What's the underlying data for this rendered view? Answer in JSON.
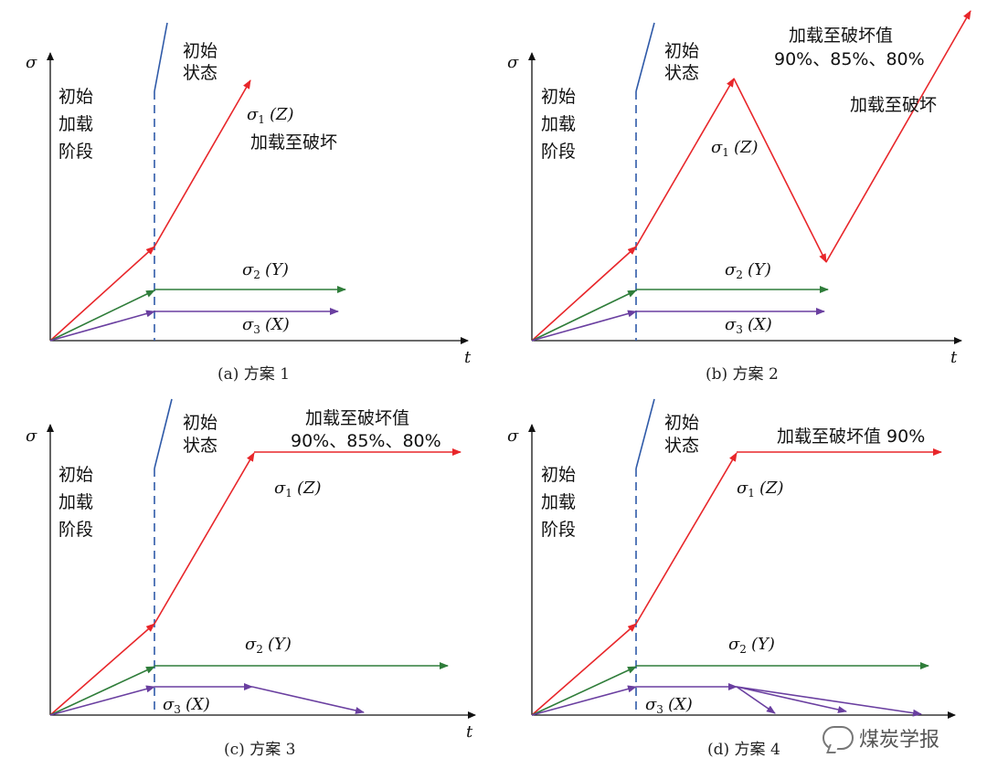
{
  "panels": [
    {
      "caption": "(a) 方案 1",
      "axis_y": "σ",
      "axis_x": "t",
      "initial_state": [
        "初始",
        "状态"
      ],
      "loading_stage": [
        "初始",
        "加载",
        "阶段"
      ],
      "s1_label": "σ",
      "s1_sub": "1",
      "s1_axis": "(Z)",
      "s2_label": "σ",
      "s2_sub": "2",
      "s2_axis": "(Y)",
      "s3_label": "σ",
      "s3_sub": "3",
      "s3_axis": "(X)",
      "note_lines": [
        "加载至破坏"
      ]
    },
    {
      "caption": "(b) 方案 2",
      "axis_y": "σ",
      "axis_x": "t",
      "initial_state": [
        "初始",
        "状态"
      ],
      "loading_stage": [
        "初始",
        "加载",
        "阶段"
      ],
      "s1_label": "σ",
      "s1_sub": "1",
      "s1_axis": "(Z)",
      "s2_label": "σ",
      "s2_sub": "2",
      "s2_axis": "(Y)",
      "s3_label": "σ",
      "s3_sub": "3",
      "s3_axis": "(X)",
      "note_lines": [
        "加载至破坏值",
        "90%、85%、80%"
      ],
      "note2_lines": [
        "加载至破坏"
      ]
    },
    {
      "caption": "(c) 方案 3",
      "axis_y": "σ",
      "axis_x": "t",
      "initial_state": [
        "初始",
        "状态"
      ],
      "loading_stage": [
        "初始",
        "加载",
        "阶段"
      ],
      "s1_label": "σ",
      "s1_sub": "1",
      "s1_axis": "(Z)",
      "s2_label": "σ",
      "s2_sub": "2",
      "s2_axis": "(Y)",
      "s3_label": "σ",
      "s3_sub": "3",
      "s3_axis": "(X)",
      "note_lines": [
        "加载至破坏值",
        "90%、85%、80%"
      ]
    },
    {
      "caption": "(d) 方案 4",
      "axis_y": "σ",
      "axis_x": "t",
      "initial_state": [
        "初始",
        "状态"
      ],
      "loading_stage": [
        "初始",
        "加载",
        "阶段"
      ],
      "s1_label": "σ",
      "s1_sub": "1",
      "s1_axis": "(Z)",
      "s2_label": "σ",
      "s2_sub": "2",
      "s2_axis": "(Y)",
      "s3_label": "σ",
      "s3_sub": "3",
      "s3_axis": "(X)",
      "note_lines": [
        "加载至破坏值 90%"
      ]
    }
  ],
  "watermark": "煤炭学报",
  "colors": {
    "sigma1": "#e8262a",
    "sigma2": "#2f7d3a",
    "sigma3": "#6a3fa0",
    "initial_state_line": "#2f5aa8",
    "axis": "#111111"
  }
}
